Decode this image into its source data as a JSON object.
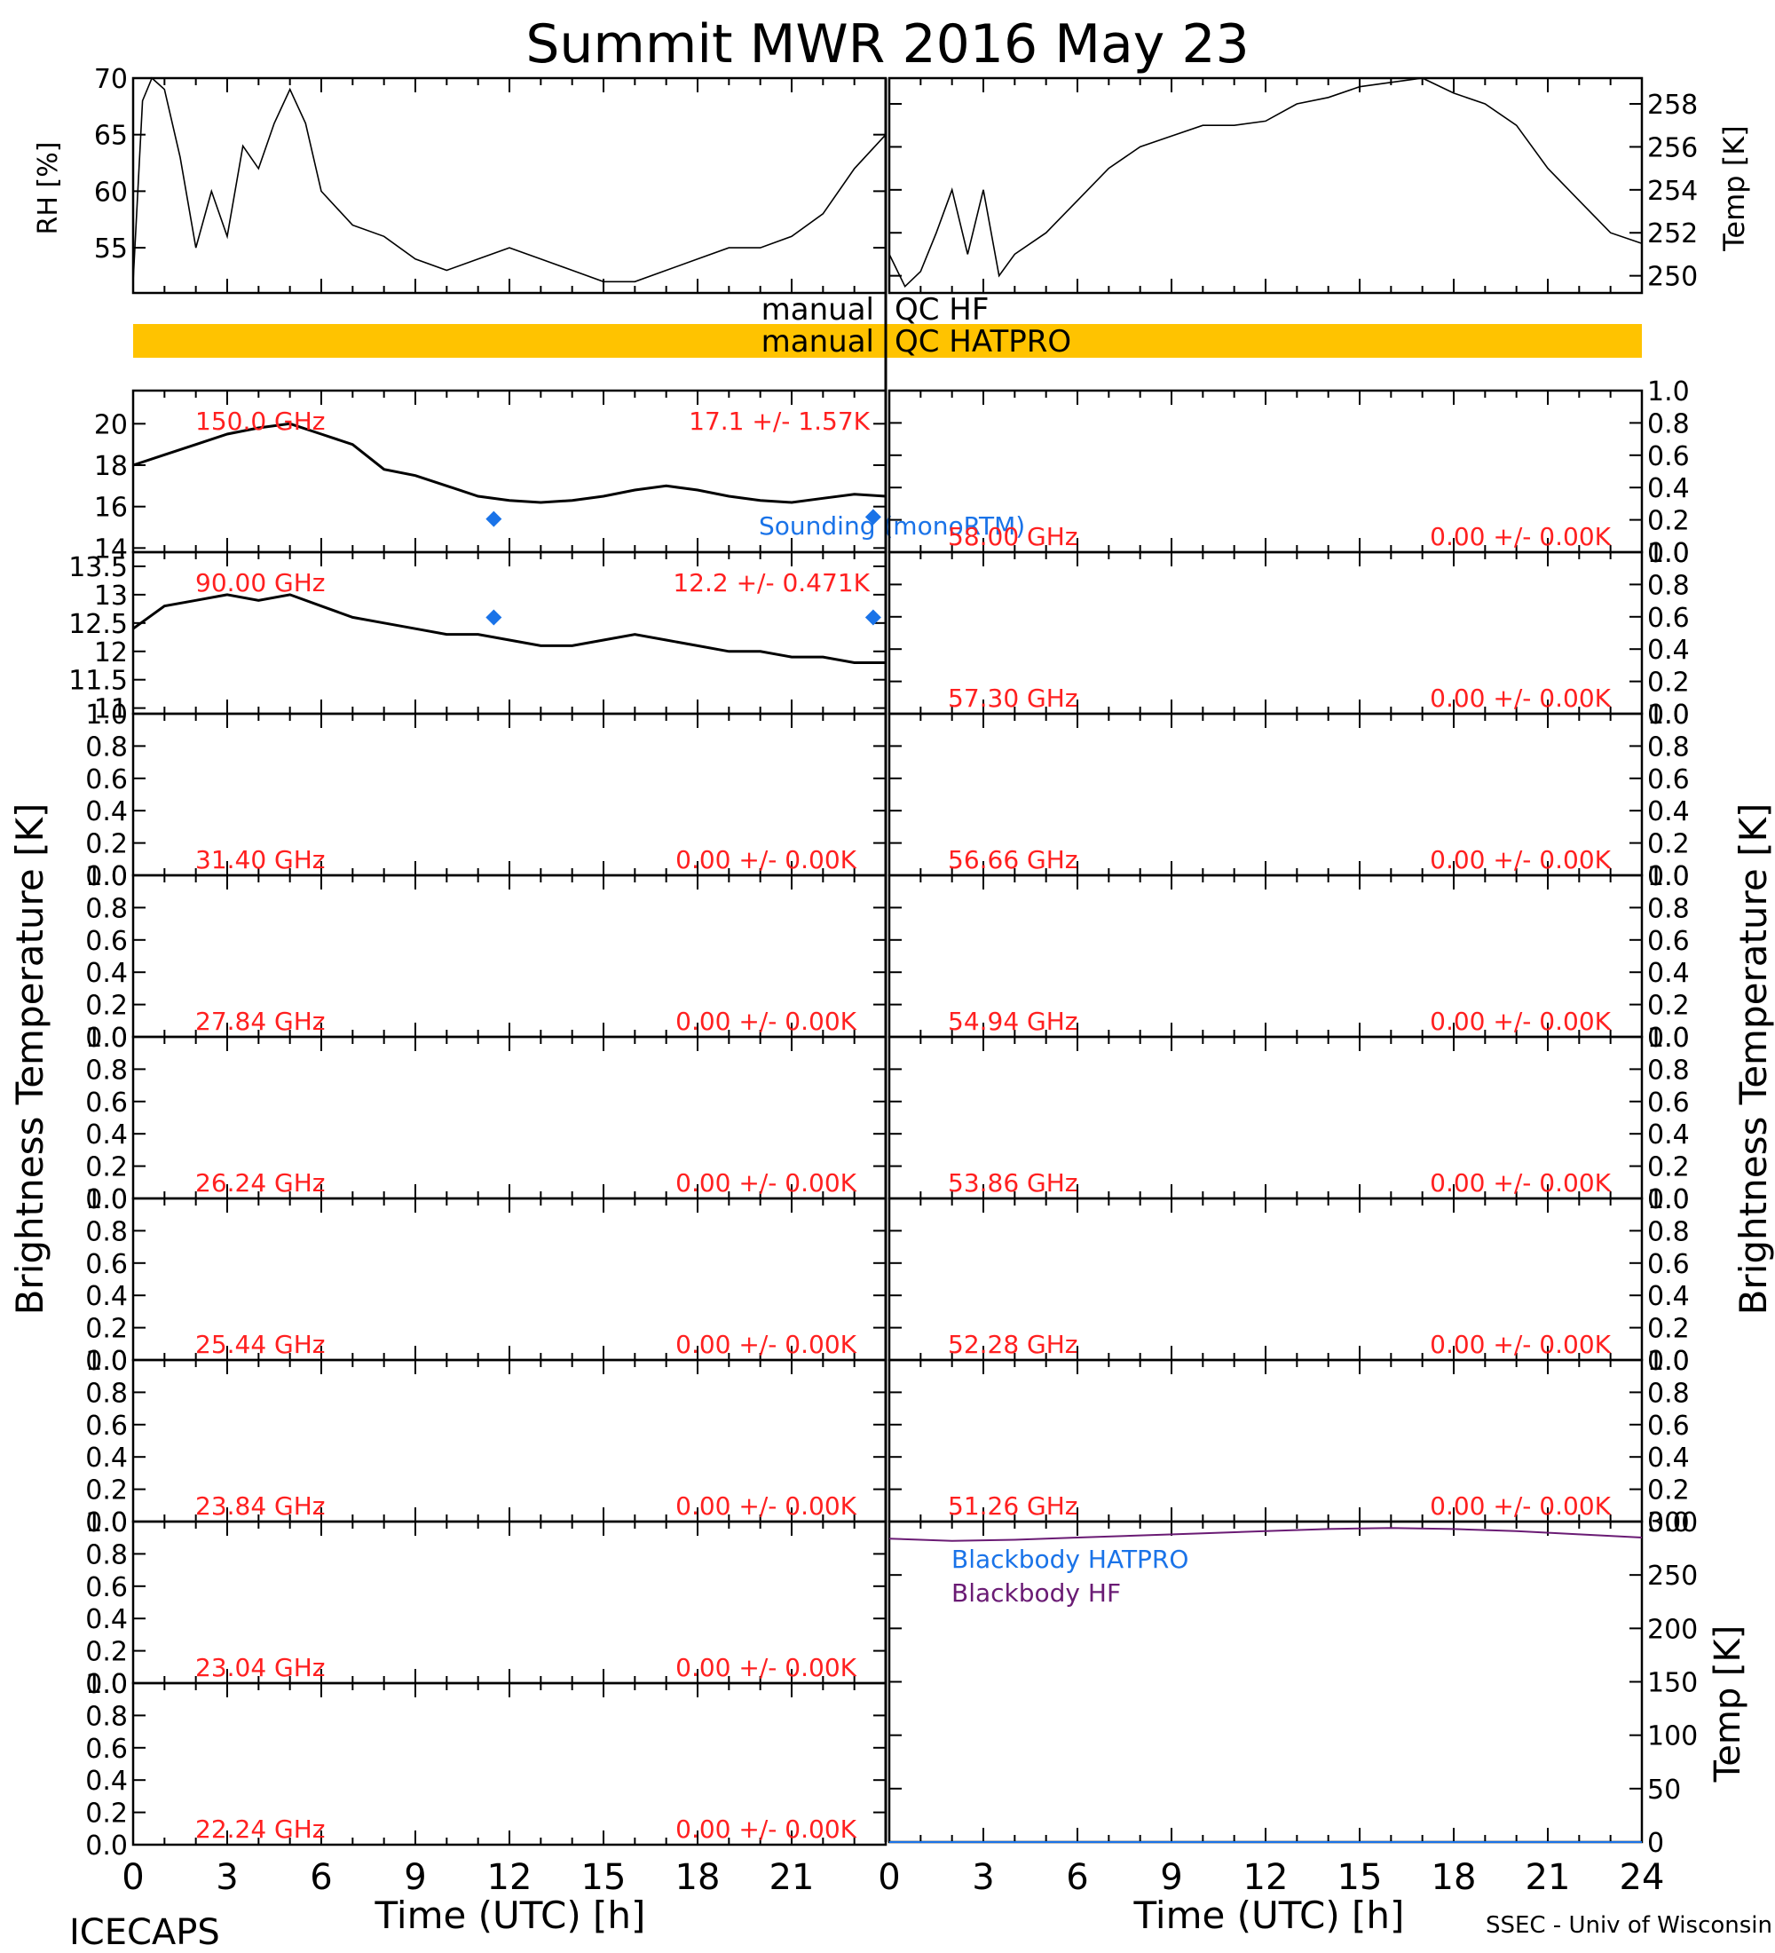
{
  "figure": {
    "title": "Summit MWR 2016 May 23",
    "footer_left": "ICECAPS",
    "footer_right": "SSEC - Univ of Wisconsin",
    "y_label_left": "Brightness Temperature [K]",
    "y_label_right": "Brightness Temperature [K]",
    "x_label_left": "Time (UTC) [h]",
    "x_label_right": "Time (UTC) [h]",
    "x_ticks": [
      "0",
      "3",
      "6",
      "9",
      "12",
      "15",
      "18",
      "21",
      "24"
    ],
    "qc_hf_left": "manual",
    "qc_hf_right": "QC HF",
    "qc_hatpro_left": "manual",
    "qc_hatpro_right": "QC HATPRO",
    "colors": {
      "ink": "#000000",
      "label": "#ff2020",
      "sounding": "#1a73e8",
      "hf": "#6a1b74",
      "qc_bar": "#ffc300"
    }
  },
  "chart_data": [
    {
      "type": "line",
      "panel": "rh",
      "ylabel": "RH [%]",
      "ylim": [
        51,
        70
      ],
      "yticks": [
        55,
        60,
        65,
        70
      ],
      "x": [
        0,
        0.3,
        0.6,
        1,
        1.5,
        2,
        2.5,
        3,
        3.5,
        4,
        4.5,
        5,
        5.5,
        6,
        7,
        8,
        9,
        10,
        11,
        12,
        13,
        14,
        15,
        16,
        17,
        18,
        19,
        20,
        21,
        22,
        23,
        24
      ],
      "values": [
        52,
        68,
        70,
        69,
        63,
        55,
        60,
        56,
        64,
        62,
        66,
        69,
        66,
        60,
        57,
        56,
        54,
        53,
        54,
        55,
        54,
        53,
        52,
        52,
        53,
        54,
        55,
        55,
        56,
        58,
        62,
        65
      ]
    },
    {
      "type": "line",
      "panel": "temp",
      "ylabel": "Temp [K]",
      "ylim": [
        249.2,
        259.2
      ],
      "yticks": [
        250,
        252,
        254,
        256,
        258
      ],
      "x": [
        0,
        0.5,
        1,
        1.5,
        2,
        2.5,
        3,
        3.5,
        4,
        5,
        6,
        7,
        8,
        9,
        10,
        11,
        12,
        13,
        14,
        15,
        16,
        17,
        18,
        19,
        20,
        21,
        22,
        23,
        24
      ],
      "values": [
        251,
        249.5,
        250.2,
        252,
        254,
        251,
        254,
        250,
        251,
        252,
        253.5,
        255,
        256,
        256.5,
        257,
        257,
        257.2,
        258,
        258.3,
        258.8,
        259,
        259.2,
        258.5,
        258,
        257,
        255,
        253.5,
        252,
        251.5
      ]
    },
    {
      "type": "line",
      "panel": "bt",
      "freq": "150.0 GHz",
      "stat": "17.1 +/-  1.57K",
      "ylim": [
        13.8,
        21.6
      ],
      "yticks": [
        14,
        16,
        18,
        20
      ],
      "x": [
        0,
        1,
        2,
        3,
        4,
        5,
        6,
        7,
        8,
        9,
        10,
        11,
        12,
        13,
        14,
        15,
        16,
        17,
        18,
        19,
        20,
        21,
        22,
        23,
        24
      ],
      "values": [
        18,
        18.5,
        19,
        19.5,
        19.8,
        20,
        19.5,
        19,
        17.8,
        17.5,
        17,
        16.5,
        16.3,
        16.2,
        16.3,
        16.5,
        16.8,
        17,
        16.8,
        16.5,
        16.3,
        16.2,
        16.4,
        16.6,
        16.5
      ],
      "sounding": {
        "label": "Sounding (monoRTM)",
        "x": [
          11.5,
          23.6
        ],
        "values": [
          15.4,
          15.5
        ]
      }
    },
    {
      "type": "line",
      "panel": "bt",
      "freq": "90.00 GHz",
      "stat": "12.2 +/- 0.471K",
      "ylim": [
        10.9,
        13.75
      ],
      "yticks": [
        11.0,
        11.5,
        12.0,
        12.5,
        13.0,
        13.5
      ],
      "x": [
        0,
        1,
        2,
        3,
        4,
        5,
        6,
        7,
        8,
        9,
        10,
        11,
        12,
        13,
        14,
        15,
        16,
        17,
        18,
        19,
        20,
        21,
        22,
        23,
        24
      ],
      "values": [
        12.4,
        12.8,
        12.9,
        13.0,
        12.9,
        13.0,
        12.8,
        12.6,
        12.5,
        12.4,
        12.3,
        12.3,
        12.2,
        12.1,
        12.1,
        12.2,
        12.3,
        12.2,
        12.1,
        12.0,
        12.0,
        11.9,
        11.9,
        11.8,
        11.8
      ],
      "sounding": {
        "x": [
          11.5,
          23.6
        ],
        "values": [
          12.6,
          12.6
        ]
      }
    },
    {
      "type": "line",
      "panel": "bt",
      "freq": "31.40 GHz",
      "stat": "0.00 +/-  0.00K",
      "ylim": [
        0,
        1
      ]
    },
    {
      "type": "line",
      "panel": "bt",
      "freq": "27.84 GHz",
      "stat": "0.00 +/-  0.00K",
      "ylim": [
        0,
        1
      ]
    },
    {
      "type": "line",
      "panel": "bt",
      "freq": "26.24 GHz",
      "stat": "0.00 +/-  0.00K",
      "ylim": [
        0,
        1
      ]
    },
    {
      "type": "line",
      "panel": "bt",
      "freq": "25.44 GHz",
      "stat": "0.00 +/-  0.00K",
      "ylim": [
        0,
        1
      ]
    },
    {
      "type": "line",
      "panel": "bt",
      "freq": "23.84 GHz",
      "stat": "0.00 +/-  0.00K",
      "ylim": [
        0,
        1
      ]
    },
    {
      "type": "line",
      "panel": "bt",
      "freq": "23.04 GHz",
      "stat": "0.00 +/-  0.00K",
      "ylim": [
        0,
        1
      ]
    },
    {
      "type": "line",
      "panel": "bt",
      "freq": "22.24 GHz",
      "stat": "0.00 +/-  0.00K",
      "ylim": [
        0,
        1
      ]
    },
    {
      "type": "line",
      "panel": "bt",
      "freq": "58.00 GHz",
      "stat": "0.00 +/-  0.00K",
      "ylim": [
        0,
        1
      ]
    },
    {
      "type": "line",
      "panel": "bt",
      "freq": "57.30 GHz",
      "stat": "0.00 +/-  0.00K",
      "ylim": [
        0,
        1
      ]
    },
    {
      "type": "line",
      "panel": "bt",
      "freq": "56.66 GHz",
      "stat": "0.00 +/-  0.00K",
      "ylim": [
        0,
        1
      ]
    },
    {
      "type": "line",
      "panel": "bt",
      "freq": "54.94 GHz",
      "stat": "0.00 +/-  0.00K",
      "ylim": [
        0,
        1
      ]
    },
    {
      "type": "line",
      "panel": "bt",
      "freq": "53.86 GHz",
      "stat": "0.00 +/-  0.00K",
      "ylim": [
        0,
        1
      ]
    },
    {
      "type": "line",
      "panel": "bt",
      "freq": "52.28 GHz",
      "stat": "0.00 +/-  0.00K",
      "ylim": [
        0,
        1
      ]
    },
    {
      "type": "line",
      "panel": "bt",
      "freq": "51.26 GHz",
      "stat": "0.00 +/-  0.00K",
      "ylim": [
        0,
        1
      ]
    },
    {
      "type": "line",
      "panel": "blackbody",
      "ylabel": "Temp [K]",
      "ylim": [
        0,
        300
      ],
      "yticks": [
        0,
        50,
        100,
        150,
        200,
        250,
        300
      ],
      "series": [
        {
          "name": "Blackbody HATPRO",
          "color": "#1a73e8",
          "x": [
            0,
            24
          ],
          "values": [
            0,
            0
          ]
        },
        {
          "name": "Blackbody HF",
          "color": "#6a1b74",
          "x": [
            0,
            2,
            4,
            6,
            8,
            10,
            12,
            14,
            16,
            18,
            20,
            22,
            24
          ],
          "values": [
            284,
            282,
            283,
            285,
            287,
            289,
            291,
            293,
            294,
            293,
            291,
            288,
            285
          ]
        }
      ]
    }
  ]
}
